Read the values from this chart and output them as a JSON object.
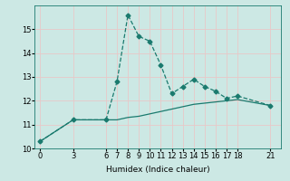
{
  "xlabel": "Humidex (Indice chaleur)",
  "line1_x": [
    0,
    3,
    6,
    7,
    8,
    9,
    10,
    11,
    12,
    13,
    14,
    15,
    16,
    17,
    18,
    21
  ],
  "line1_y": [
    10.3,
    11.2,
    11.2,
    12.8,
    15.6,
    14.7,
    14.5,
    13.5,
    12.3,
    12.6,
    12.9,
    12.6,
    12.4,
    12.1,
    12.2,
    11.8
  ],
  "line2_x": [
    0,
    3,
    6,
    7,
    8,
    9,
    10,
    11,
    12,
    13,
    14,
    15,
    16,
    17,
    18,
    21
  ],
  "line2_y": [
    10.3,
    11.2,
    11.2,
    11.2,
    11.3,
    11.35,
    11.45,
    11.55,
    11.65,
    11.75,
    11.85,
    11.9,
    11.95,
    12.0,
    12.05,
    11.8
  ],
  "line_color": "#1a7a6e",
  "bg_color": "#cce8e4",
  "grid_color": "#e8c8c8",
  "ylim": [
    10,
    16
  ],
  "yticks": [
    10,
    11,
    12,
    13,
    14,
    15
  ],
  "xticks": [
    0,
    3,
    6,
    7,
    8,
    9,
    10,
    11,
    12,
    13,
    14,
    15,
    16,
    17,
    18,
    21
  ],
  "marker": "D",
  "markersize": 2.5,
  "linewidth": 0.9,
  "fontsize_label": 6.5,
  "fontsize_tick": 6.0
}
